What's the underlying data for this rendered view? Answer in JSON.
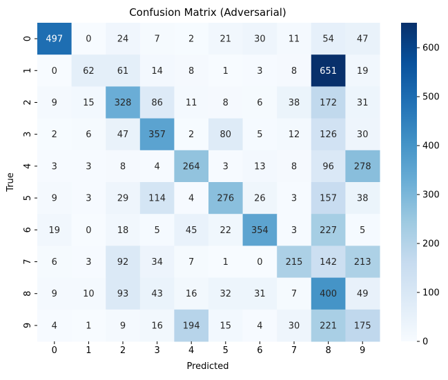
{
  "chart_data": {
    "type": "heatmap",
    "title": "Confusion Matrix (Adversarial)",
    "xlabel": "Predicted",
    "ylabel": "True",
    "x_categories": [
      "0",
      "1",
      "2",
      "3",
      "4",
      "5",
      "6",
      "7",
      "8",
      "9"
    ],
    "y_categories": [
      "0",
      "1",
      "2",
      "3",
      "4",
      "5",
      "6",
      "7",
      "8",
      "9"
    ],
    "values": [
      [
        497,
        0,
        24,
        7,
        2,
        21,
        30,
        11,
        54,
        47
      ],
      [
        0,
        62,
        61,
        14,
        8,
        1,
        3,
        8,
        651,
        19
      ],
      [
        9,
        15,
        328,
        86,
        11,
        8,
        6,
        38,
        172,
        31
      ],
      [
        2,
        6,
        47,
        357,
        2,
        80,
        5,
        12,
        126,
        30
      ],
      [
        3,
        3,
        8,
        4,
        264,
        3,
        13,
        8,
        96,
        278
      ],
      [
        9,
        3,
        29,
        114,
        4,
        276,
        26,
        3,
        157,
        38
      ],
      [
        19,
        0,
        18,
        5,
        45,
        22,
        354,
        3,
        227,
        5
      ],
      [
        6,
        3,
        92,
        34,
        7,
        1,
        0,
        215,
        142,
        213
      ],
      [
        9,
        10,
        93,
        43,
        16,
        32,
        31,
        7,
        400,
        49
      ],
      [
        4,
        1,
        9,
        16,
        194,
        15,
        4,
        30,
        221,
        175
      ]
    ],
    "colormap": "Blues",
    "colorbar": {
      "min": 0,
      "max": 651,
      "ticks": [
        0,
        100,
        200,
        300,
        400,
        500,
        600
      ]
    },
    "grid": false,
    "legend": "none"
  }
}
